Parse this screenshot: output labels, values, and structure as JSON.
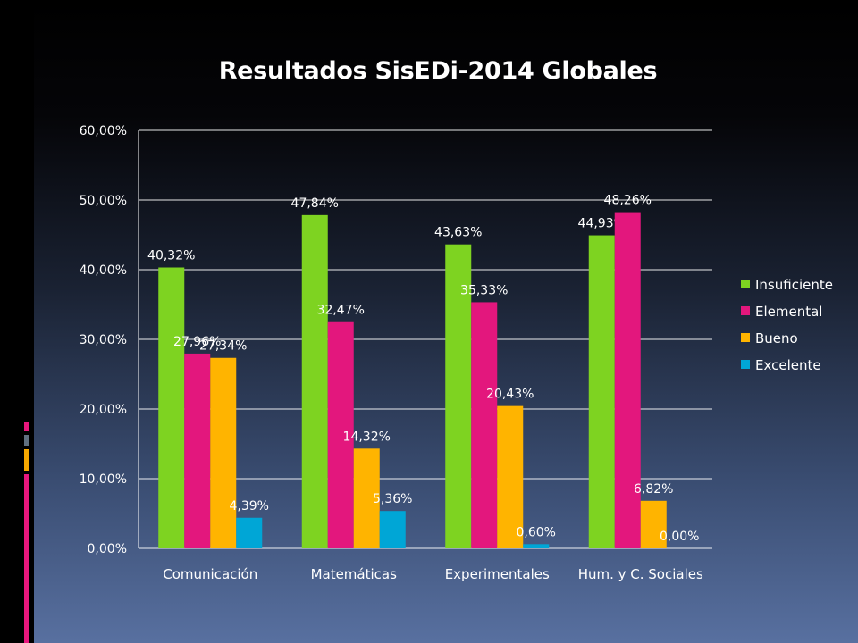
{
  "title": "Resultados SisEDi-2014 Globales",
  "accent_colors": [
    "#e8177d",
    "#607080",
    "#f7a800"
  ],
  "chart_data": {
    "type": "bar",
    "title": "Resultados SisEDi-2014 Globales",
    "categories": [
      "Comunicación",
      "Matemáticas",
      "Experimentales",
      "Hum. y C. Sociales"
    ],
    "series": [
      {
        "name": "Insuficiente",
        "color": "#7ed321",
        "values": [
          40.32,
          47.84,
          43.63,
          44.93
        ],
        "labels": [
          "40,32%",
          "47,84%",
          "43,63%",
          "44,93%"
        ]
      },
      {
        "name": "Elemental",
        "color": "#e3177d",
        "values": [
          27.96,
          32.47,
          35.33,
          48.26
        ],
        "labels": [
          "27,96%",
          "32,47%",
          "35,33%",
          "48,26%"
        ]
      },
      {
        "name": "Bueno",
        "color": "#ffb400",
        "values": [
          27.34,
          14.32,
          20.43,
          6.82
        ],
        "labels": [
          "27,34%",
          "14,32%",
          "20,43%",
          "6,82%"
        ]
      },
      {
        "name": "Excelente",
        "color": "#00a6d6",
        "values": [
          4.39,
          5.36,
          0.6,
          0.0
        ],
        "labels": [
          "4,39%",
          "5,36%",
          "0,60%",
          "0,00%"
        ]
      }
    ],
    "ylim": [
      0,
      60
    ],
    "yticks": [
      0,
      10,
      20,
      30,
      40,
      50,
      60
    ],
    "ytick_labels": [
      "0,00%",
      "10,00%",
      "20,00%",
      "30,00%",
      "40,00%",
      "50,00%",
      "60,00%"
    ],
    "grid": true,
    "legend": "right",
    "xlabel": "",
    "ylabel": ""
  }
}
